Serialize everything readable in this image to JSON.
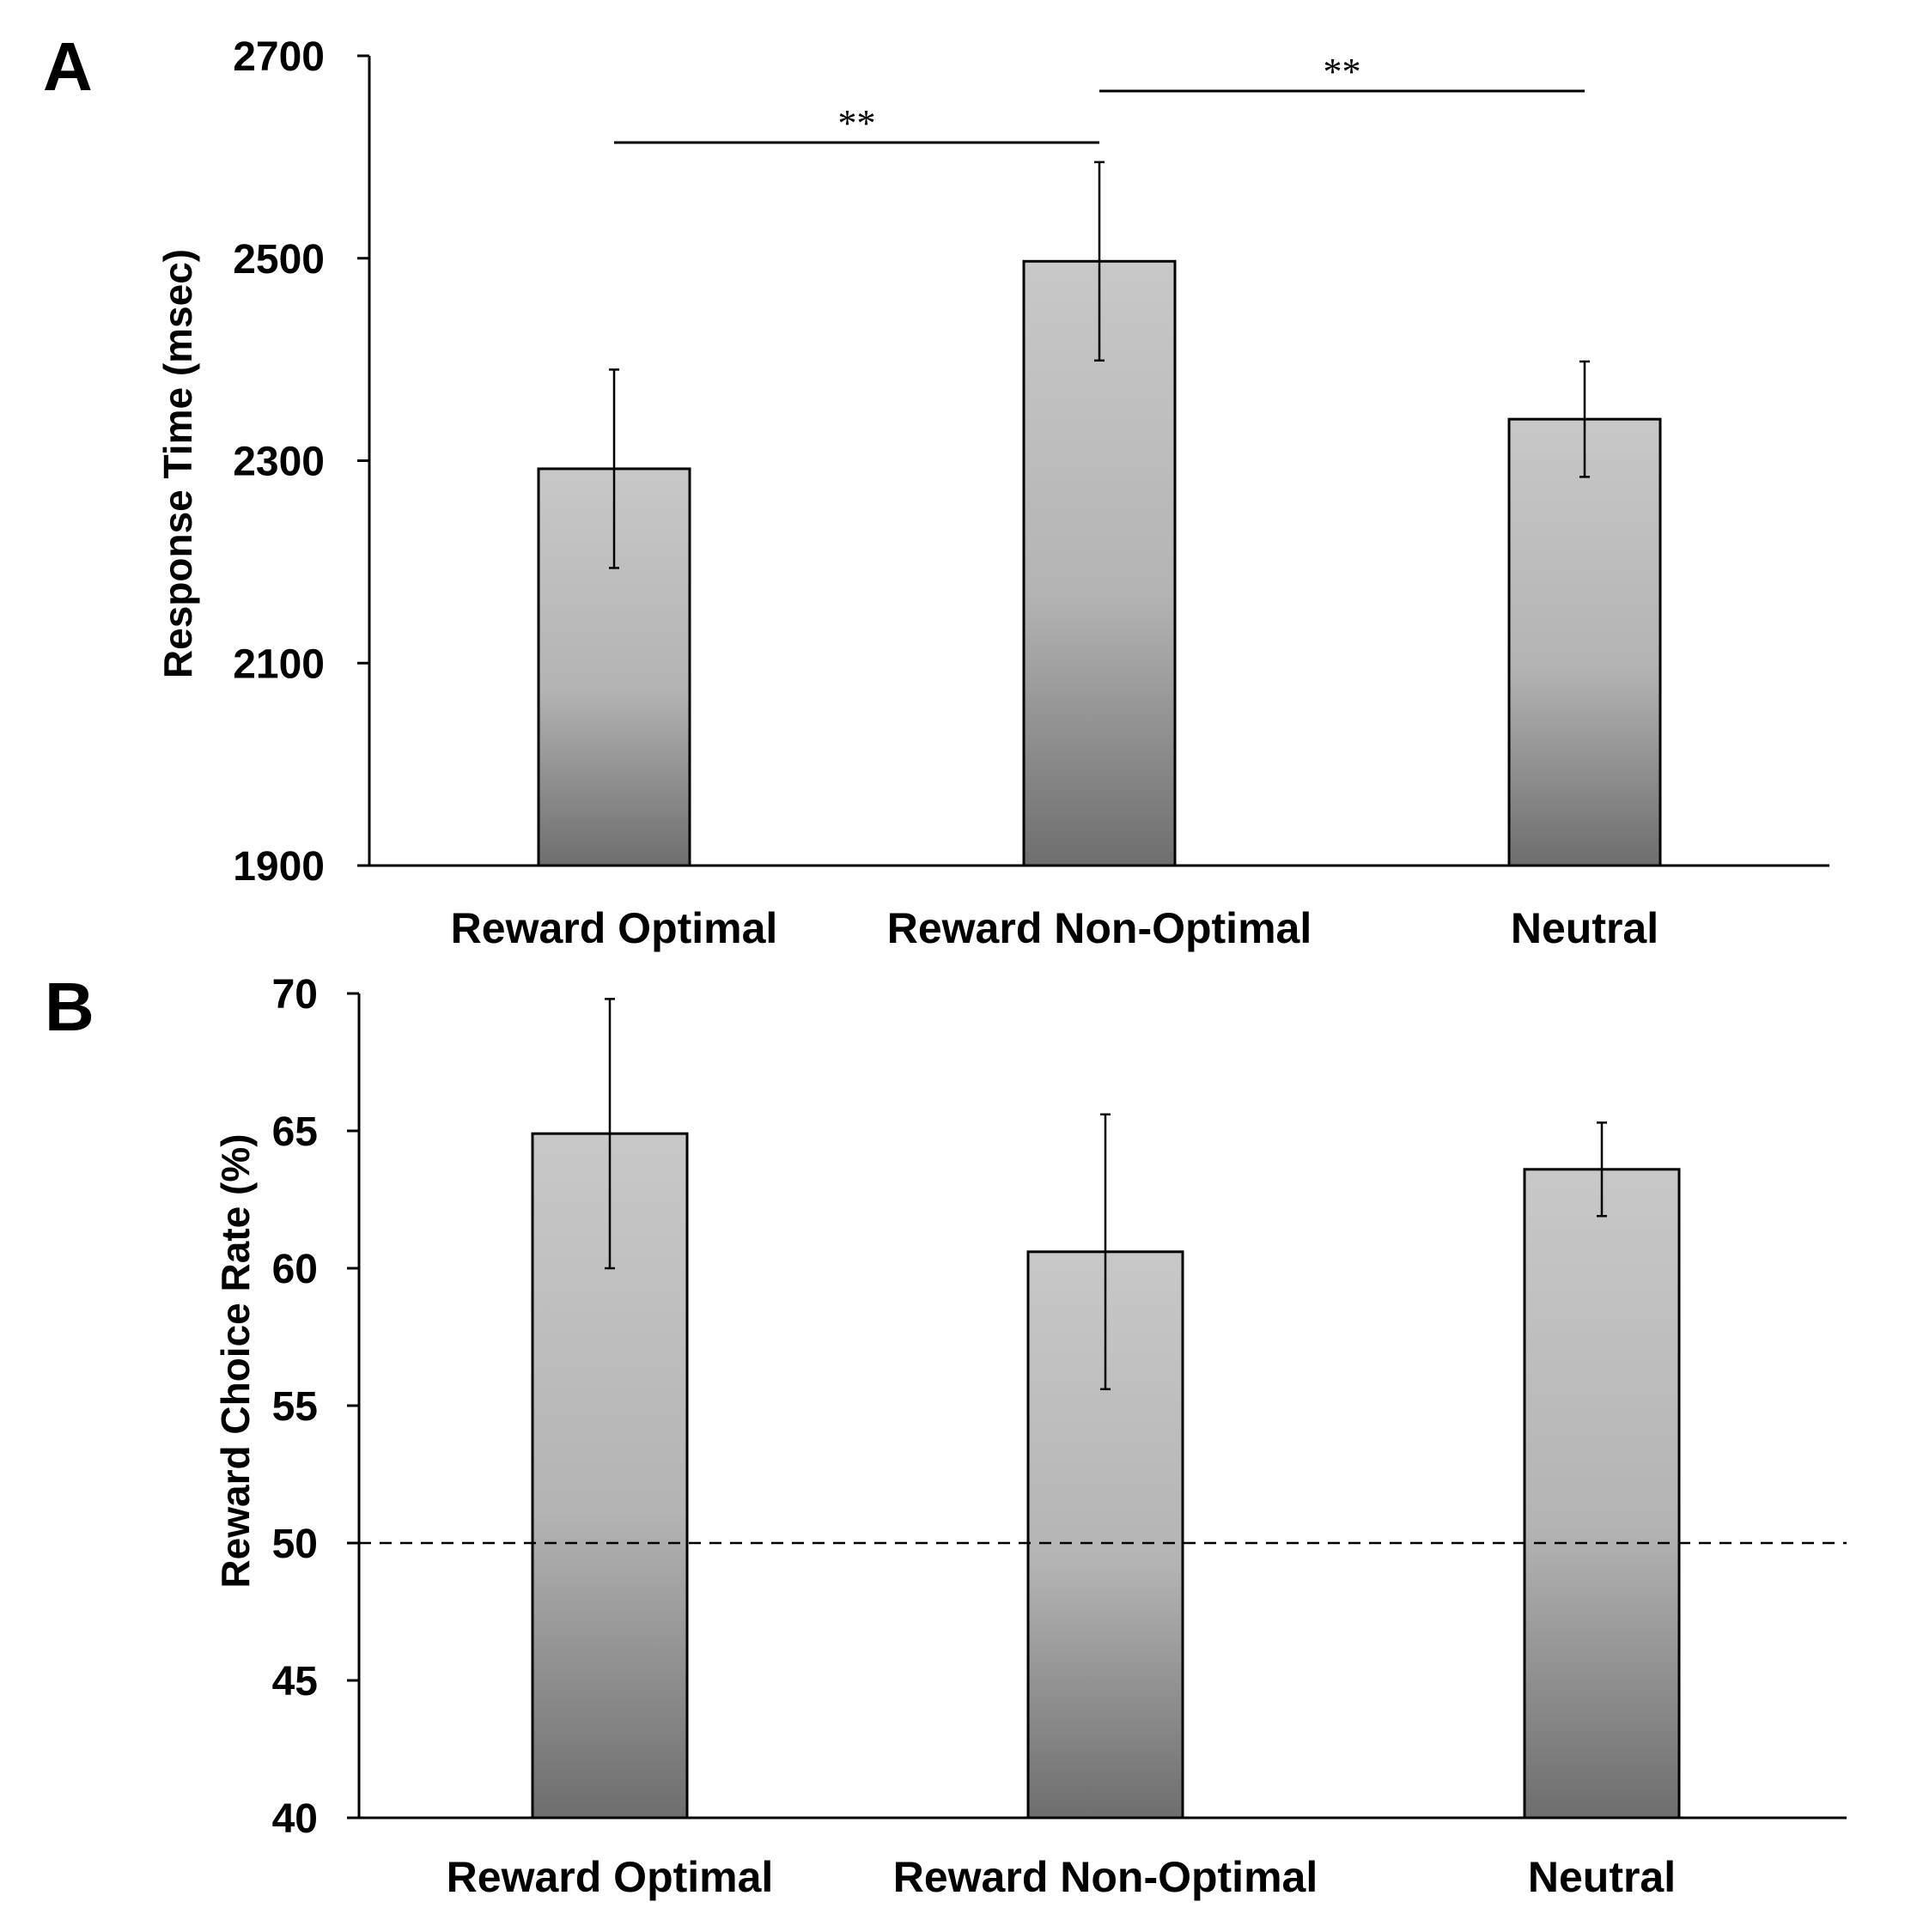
{
  "chart_data": [
    {
      "panel": "A",
      "type": "bar",
      "categories": [
        "Reward Optimal",
        "Reward Non-Optimal",
        "Neutral"
      ],
      "values": [
        2292,
        2497,
        2341
      ],
      "errors": [
        98,
        98,
        57
      ],
      "title": "",
      "xlabel": "",
      "ylabel": "Response Time (msec)",
      "ylim": [
        1900,
        2700
      ],
      "yticks": [
        1900,
        2100,
        2300,
        2500,
        2700
      ],
      "grid": false,
      "significance": [
        {
          "from": "Reward Optimal",
          "to": "Reward Non-Optimal",
          "label": "**"
        },
        {
          "from": "Reward Non-Optimal",
          "to": "Neutral",
          "label": "**"
        }
      ],
      "bar_fill": {
        "top": "#c8c8c8",
        "bottom": "#6e6e6e"
      }
    },
    {
      "panel": "B",
      "type": "bar",
      "categories": [
        "Reward Optimal",
        "Reward Non-Optimal",
        "Neutral"
      ],
      "values": [
        64.9,
        60.6,
        63.6
      ],
      "errors": [
        4.9,
        5.0,
        1.7
      ],
      "title": "",
      "xlabel": "",
      "ylabel": "Reward Choice Rate (%)",
      "ylim": [
        40,
        70
      ],
      "yticks": [
        40,
        45,
        50,
        55,
        60,
        65,
        70
      ],
      "grid": false,
      "reference_line": {
        "y": 50,
        "style": "dashed"
      },
      "bar_fill": {
        "top": "#c8c8c8",
        "bottom": "#6e6e6e"
      }
    }
  ]
}
